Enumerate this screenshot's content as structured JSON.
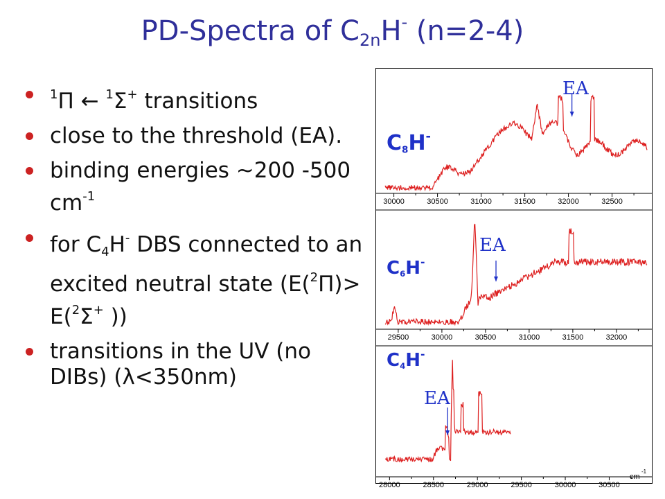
{
  "slide": {
    "title_main": "PD-Spectra of C",
    "title_sub": "2n",
    "title_h": "H",
    "title_sup": "-",
    "title_tail": " (n=2-4)",
    "bullet_color": "#cc2222",
    "title_color": "#2f2f9a"
  },
  "bullets": [
    {
      "p1": "1",
      "p2": "Π",
      "p3": " ← ",
      "p4": "1",
      "p5": "Σ",
      "p6": "+",
      "p7": " transitions"
    },
    {
      "text": "close to the threshold (EA)."
    },
    {
      "text": "binding energies ~200 -500 cm",
      "sup": "-1"
    },
    {
      "p1": "for C",
      "p2": "4",
      "p3": "H",
      "p4": "-",
      "p5": " DBS connected to an excited neutral state (E(",
      "p6": "2",
      "p7": "Π",
      "p8": ")> E(",
      "p9": "2",
      "p10": "Σ",
      "p11": "+",
      "p12": " ))"
    },
    {
      "text": "transitions in the UV (no DIBs) (",
      "lambda": "λ",
      "tail": "<350nm)"
    }
  ],
  "figure": {
    "unit_label": "cm",
    "unit_sup": "-1",
    "ea_text": "EA",
    "line_color": "#dd1f1f",
    "label_color": "#1f31c8",
    "panels": [
      {
        "label_c": "C",
        "label_n": "8",
        "label_h": "H",
        "label_sup": "-",
        "ticks": [
          "30000",
          "30500",
          "31000",
          "31500",
          "32000",
          "32500"
        ],
        "range": [
          29900,
          32900
        ],
        "ea": 32040
      },
      {
        "label_c": "C",
        "label_n": "6",
        "label_h": "H",
        "label_sup": "-",
        "ticks": [
          "29500",
          "30000",
          "30500",
          "31000",
          "31500",
          "32000"
        ],
        "range": [
          29350,
          32350
        ],
        "ea": 30620
      },
      {
        "label_c": "C",
        "label_n": "4",
        "label_h": "H",
        "label_sup": "-",
        "ticks": [
          "28000",
          "28500",
          "29000",
          "29500",
          "30000",
          "30500"
        ],
        "range": [
          27950,
          30930
        ],
        "ea": 28660
      }
    ]
  }
}
